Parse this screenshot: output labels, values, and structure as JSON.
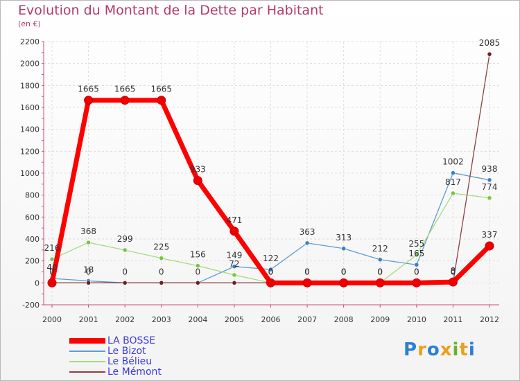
{
  "title": "Evolution du Montant de la Dette par Habitant",
  "subtitle": "(en €)",
  "logo": {
    "text": "Proxiti",
    "colors": [
      "#2a7fd4",
      "#e8a020",
      "#2a7fd4",
      "#e8a020",
      "#6ab030",
      "#e8a020",
      "#2a7fd4"
    ]
  },
  "chart_data": {
    "type": "line",
    "title": "Evolution du Montant de la Dette par Habitant",
    "ylabel": "(en €)",
    "xlabel": "",
    "x": [
      "2000",
      "2001",
      "2002",
      "2003",
      "2004",
      "2005",
      "2006",
      "2007",
      "2008",
      "2009",
      "2010",
      "2011",
      "2012"
    ],
    "ylim": [
      -200,
      2200
    ],
    "yticks": [
      -200,
      0,
      200,
      400,
      600,
      800,
      1000,
      1200,
      1400,
      1600,
      1800,
      2000,
      2200
    ],
    "legend_position": "bottom-left",
    "series": [
      {
        "name": "Le Bizot",
        "color": "#5b9bd5",
        "marker": "#3a7fc4",
        "values": [
          40,
          18,
          0,
          0,
          0,
          149,
          122,
          363,
          313,
          212,
          165,
          1002,
          938
        ]
      },
      {
        "name": "Le Bélieu",
        "color": "#a5db7d",
        "marker": "#79c442",
        "values": [
          216,
          368,
          299,
          225,
          156,
          72,
          0,
          0,
          0,
          0,
          255,
          817,
          774
        ]
      },
      {
        "name": "Le Mémont",
        "color": "#8b4040",
        "marker": "#6b1f1f",
        "values": [
          0,
          0,
          0,
          0,
          0,
          0,
          0,
          0,
          0,
          0,
          0,
          0,
          2085
        ]
      },
      {
        "name": "LA BOSSE",
        "color": "#ff0000",
        "marker": "#ee0000",
        "values": [
          0,
          1665,
          1665,
          1665,
          933,
          471,
          0,
          0,
          0,
          0,
          0,
          8,
          337
        ]
      }
    ],
    "data_labels": {
      "Le Bizot": [
        "40",
        "18",
        "0",
        "0",
        "0",
        "149",
        "122",
        "363",
        "313",
        "212",
        "165",
        "1002",
        "938"
      ],
      "Le Bélieu": [
        "216",
        "368",
        "299",
        "225",
        "156",
        "72",
        "0",
        "0",
        "0",
        "0",
        "255",
        "817",
        "774"
      ],
      "Le Mémont": [
        "",
        "0",
        "",
        "",
        "",
        "",
        "0",
        "0",
        "0",
        "0",
        "0",
        "0",
        "2085"
      ],
      "LA BOSSE": [
        "0",
        "1665",
        "1665",
        "1665",
        "933",
        "471",
        "0",
        "0",
        "0",
        "0",
        "0",
        "8",
        "337"
      ]
    }
  },
  "legend": [
    {
      "name": "LA BOSSE",
      "color": "#ff0000",
      "text_color": "#3a3ae0"
    },
    {
      "name": "Le Bizot",
      "color": "#5b9bd5",
      "text_color": "#3a3ae0"
    },
    {
      "name": "Le Bélieu",
      "color": "#a5db7d",
      "text_color": "#3a3ae0"
    },
    {
      "name": "Le Mémont",
      "color": "#8b4040",
      "text_color": "#3a3ae0"
    }
  ]
}
